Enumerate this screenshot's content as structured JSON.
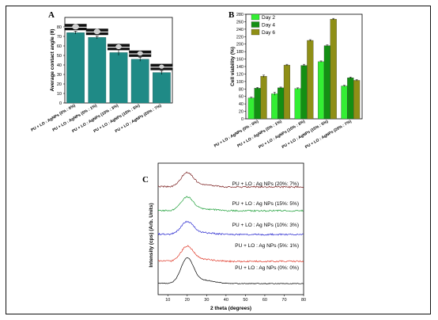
{
  "chart_data": [
    {
      "panel": "A",
      "type": "bar",
      "ylabel": "Average contact angle (θ)",
      "ylim": [
        0,
        90
      ],
      "yticks": [
        0,
        10,
        20,
        30,
        40,
        50,
        60,
        70,
        80
      ],
      "categories": [
        "PU + LO : AgNPs (0% : 0%)",
        "PU + LO : AgNPs (5% : 1%)",
        "PU + LO : AgNPs (10% : 3%)",
        "PU + LO : AgNPs (15% : 5%)",
        "PU + LO : AgNPs (20% : 7%)"
      ],
      "values": [
        74,
        69,
        53,
        46,
        32
      ],
      "errors": [
        1.5,
        1.5,
        3,
        2,
        2
      ],
      "color": "#1f8a86"
    },
    {
      "panel": "B",
      "type": "bar",
      "ylabel": "Cell viability (%)",
      "ylim": [
        0,
        280
      ],
      "yticks": [
        0,
        20,
        40,
        60,
        80,
        100,
        120,
        140,
        160,
        180,
        200,
        220,
        240,
        260,
        280
      ],
      "categories": [
        "PU + LO : AgNPs (0% : 0%)",
        "PU + LO : AgNPs (5% : 1%)",
        "PU + LO : AgNPs (10% : 3%)",
        "PU + LO : AgNPs (15% : 5%)",
        "PU + LO : AgNPs (20% : 7%)"
      ],
      "series": [
        {
          "name": "Day 2",
          "values": [
            56,
            67,
            81,
            153,
            88
          ],
          "errors": [
            2,
            4,
            2,
            2,
            2
          ],
          "color": "#33ee33"
        },
        {
          "name": "Day 4",
          "values": [
            82,
            83,
            143,
            196,
            110
          ],
          "errors": [
            2,
            2,
            3,
            2,
            2
          ],
          "color": "#138f13"
        },
        {
          "name": "Day 6",
          "values": [
            114,
            144,
            210,
            267,
            103
          ],
          "errors": [
            3,
            2,
            2,
            2,
            2
          ],
          "color": "#8f8f16"
        }
      ],
      "legend": "top-left"
    },
    {
      "panel": "C",
      "type": "line",
      "xlabel": "2 theta (degrees)",
      "ylabel": "Intensity (cps) (Arb. Units)",
      "xlim": [
        5,
        80
      ],
      "xticks": [
        10,
        20,
        30,
        40,
        50,
        60,
        70,
        80
      ],
      "peak_x": 20,
      "series": [
        {
          "name": "PU + LO : Ag NPs (0%: 0%)",
          "color": "#000000"
        },
        {
          "name": "PU + LO : Ag NPs (5%: 1%)",
          "color": "#e03a2a"
        },
        {
          "name": "PU + LO : Ag NPs (10%: 3%)",
          "color": "#2a2ad0"
        },
        {
          "name": "PU + LO : Ag NPs (15%: 5%)",
          "color": "#1fa03a"
        },
        {
          "name": "PU + LO : Ag NPs (20%: 7%)",
          "color": "#7a1f1f"
        }
      ]
    }
  ]
}
